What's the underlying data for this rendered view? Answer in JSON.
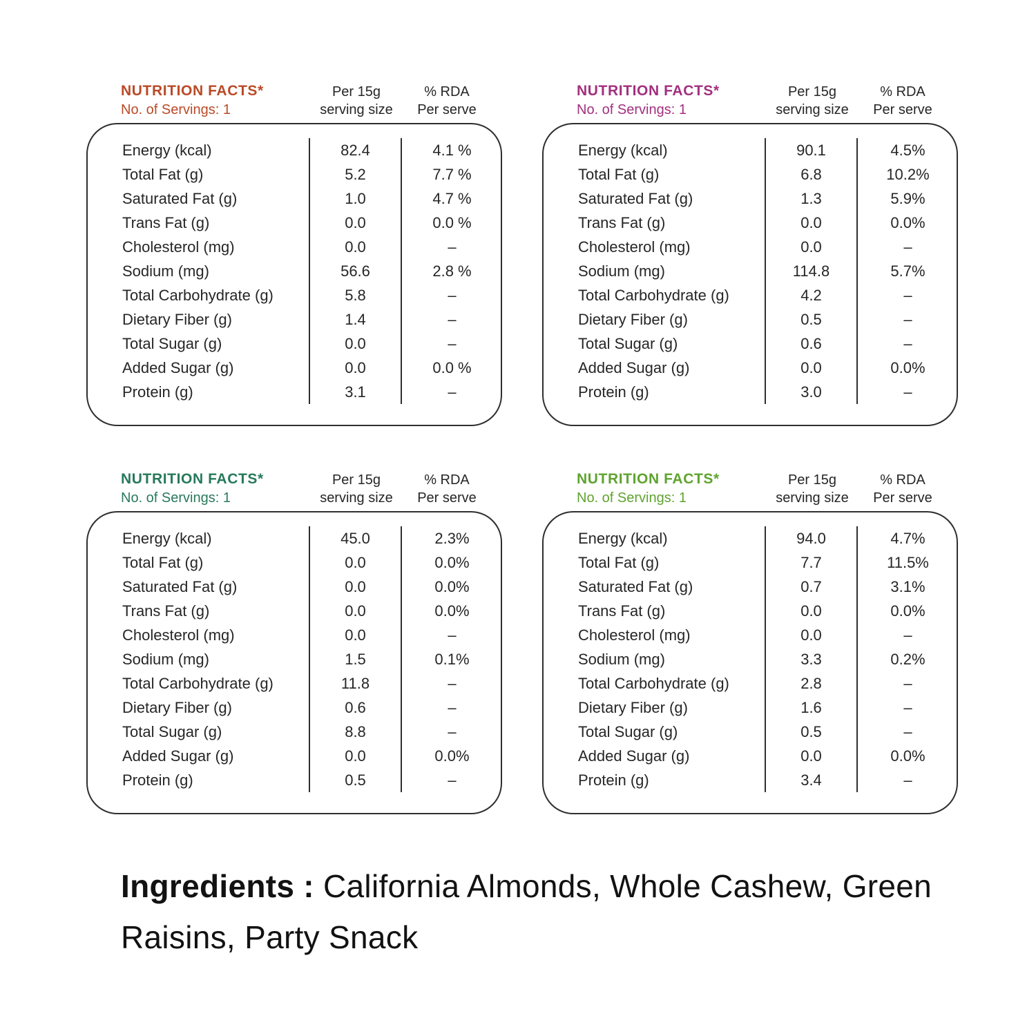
{
  "ingredients": {
    "label": "Ingredients :",
    "text": "California Almonds, Whole Cashew, Green Raisins, Party Snack"
  },
  "tables": [
    {
      "title": "NUTRITION FACTS*",
      "servings": "No. of Servings: 1",
      "accent": "#BA4A28",
      "col_serving_line1": "Per 15g",
      "col_serving_line2": "serving size",
      "col_rda_line1": "% RDA",
      "col_rda_line2": "Per serve",
      "rows": [
        {
          "label": "Energy (kcal)",
          "value": "82.4",
          "rda": "4.1 %"
        },
        {
          "label": "Total Fat (g)",
          "value": "5.2",
          "rda": "7.7 %"
        },
        {
          "label": "Saturated Fat (g)",
          "value": "1.0",
          "rda": "4.7 %"
        },
        {
          "label": "Trans Fat (g)",
          "value": "0.0",
          "rda": "0.0 %"
        },
        {
          "label": "Cholesterol (mg)",
          "value": "0.0",
          "rda": "–"
        },
        {
          "label": "Sodium (mg)",
          "value": "56.6",
          "rda": "2.8 %"
        },
        {
          "label": "Total Carbohydrate (g)",
          "value": "5.8",
          "rda": "–"
        },
        {
          "label": "Dietary Fiber (g)",
          "value": "1.4",
          "rda": "–"
        },
        {
          "label": "Total Sugar (g)",
          "value": "0.0",
          "rda": "–"
        },
        {
          "label": "Added Sugar (g)",
          "value": "0.0",
          "rda": "0.0 %"
        },
        {
          "label": "Protein (g)",
          "value": "3.1",
          "rda": "–"
        }
      ]
    },
    {
      "title": "NUTRITION FACTS*",
      "servings": "No. of Servings: 1",
      "accent": "#A2307F",
      "col_serving_line1": "Per 15g",
      "col_serving_line2": "serving size",
      "col_rda_line1": "% RDA",
      "col_rda_line2": "Per serve",
      "rows": [
        {
          "label": "Energy (kcal)",
          "value": "90.1",
          "rda": "4.5%"
        },
        {
          "label": "Total Fat (g)",
          "value": "6.8",
          "rda": "10.2%"
        },
        {
          "label": "Saturated Fat (g)",
          "value": "1.3",
          "rda": "5.9%"
        },
        {
          "label": "Trans Fat (g)",
          "value": "0.0",
          "rda": "0.0%"
        },
        {
          "label": "Cholesterol (mg)",
          "value": "0.0",
          "rda": "–"
        },
        {
          "label": "Sodium (mg)",
          "value": "114.8",
          "rda": "5.7%"
        },
        {
          "label": "Total Carbohydrate (g)",
          "value": "4.2",
          "rda": "–"
        },
        {
          "label": "Dietary Fiber (g)",
          "value": "0.5",
          "rda": "–"
        },
        {
          "label": "Total Sugar (g)",
          "value": "0.6",
          "rda": "–"
        },
        {
          "label": "Added Sugar (g)",
          "value": "0.0",
          "rda": "0.0%"
        },
        {
          "label": "Protein (g)",
          "value": "3.0",
          "rda": "–"
        }
      ]
    },
    {
      "title": "NUTRITION FACTS*",
      "servings": "No. of Servings: 1",
      "accent": "#28795C",
      "col_serving_line1": "Per 15g",
      "col_serving_line2": "serving size",
      "col_rda_line1": "% RDA",
      "col_rda_line2": "Per serve",
      "rows": [
        {
          "label": "Energy (kcal)",
          "value": "45.0",
          "rda": "2.3%"
        },
        {
          "label": "Total Fat (g)",
          "value": "0.0",
          "rda": "0.0%"
        },
        {
          "label": "Saturated Fat (g)",
          "value": "0.0",
          "rda": "0.0%"
        },
        {
          "label": "Trans Fat (g)",
          "value": "0.0",
          "rda": "0.0%"
        },
        {
          "label": "Cholesterol (mg)",
          "value": "0.0",
          "rda": "–"
        },
        {
          "label": "Sodium (mg)",
          "value": "1.5",
          "rda": "0.1%"
        },
        {
          "label": "Total Carbohydrate (g)",
          "value": "11.8",
          "rda": "–"
        },
        {
          "label": "Dietary Fiber (g)",
          "value": "0.6",
          "rda": "–"
        },
        {
          "label": "Total Sugar (g)",
          "value": "8.8",
          "rda": "–"
        },
        {
          "label": "Added Sugar (g)",
          "value": "0.0",
          "rda": "0.0%"
        },
        {
          "label": "Protein (g)",
          "value": "0.5",
          "rda": "–"
        }
      ]
    },
    {
      "title": "NUTRITION FACTS*",
      "servings": "No. of Servings: 1",
      "accent": "#60A32F",
      "col_serving_line1": "Per 15g",
      "col_serving_line2": "serving size",
      "col_rda_line1": "% RDA",
      "col_rda_line2": "Per serve",
      "rows": [
        {
          "label": "Energy (kcal)",
          "value": "94.0",
          "rda": "4.7%"
        },
        {
          "label": "Total Fat (g)",
          "value": "7.7",
          "rda": "11.5%"
        },
        {
          "label": "Saturated Fat (g)",
          "value": "0.7",
          "rda": "3.1%"
        },
        {
          "label": "Trans Fat (g)",
          "value": "0.0",
          "rda": "0.0%"
        },
        {
          "label": "Cholesterol (mg)",
          "value": "0.0",
          "rda": "–"
        },
        {
          "label": "Sodium (mg)",
          "value": "3.3",
          "rda": "0.2%"
        },
        {
          "label": "Total Carbohydrate (g)",
          "value": "2.8",
          "rda": "–"
        },
        {
          "label": "Dietary Fiber (g)",
          "value": "1.6",
          "rda": "–"
        },
        {
          "label": "Total Sugar (g)",
          "value": "0.5",
          "rda": "–"
        },
        {
          "label": "Added Sugar (g)",
          "value": "0.0",
          "rda": "0.0%"
        },
        {
          "label": "Protein (g)",
          "value": "3.4",
          "rda": "–"
        }
      ]
    }
  ]
}
